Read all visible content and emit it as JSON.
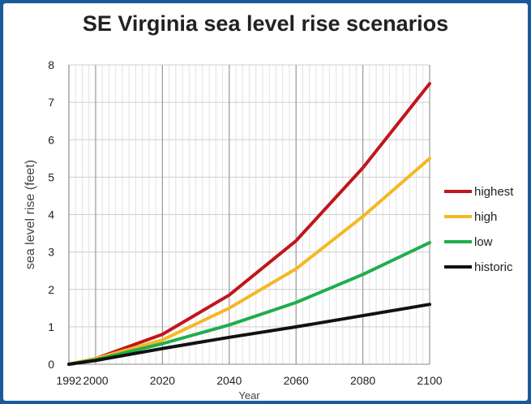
{
  "chart_data": {
    "type": "line",
    "title": "SE Virginia sea level rise scenarios",
    "xlabel": "Year",
    "ylabel": "sea level rise (feet)",
    "x": [
      1992,
      2000,
      2020,
      2040,
      2060,
      2080,
      2100
    ],
    "x_ticks": [
      "1992",
      "2000",
      "2020",
      "2040",
      "2060",
      "2080",
      "2100"
    ],
    "y_ticks": [
      "0",
      "1",
      "2",
      "3",
      "4",
      "5",
      "6",
      "7",
      "8"
    ],
    "xlim": [
      1992,
      2100
    ],
    "ylim": [
      0,
      8
    ],
    "grid": true,
    "legend_position": "right",
    "series": [
      {
        "name": "highest",
        "color": "#c0161c",
        "values": [
          0,
          0.15,
          0.8,
          1.85,
          3.3,
          5.25,
          7.5
        ]
      },
      {
        "name": "high",
        "color": "#f5b823",
        "values": [
          0,
          0.15,
          0.65,
          1.5,
          2.55,
          3.95,
          5.5
        ]
      },
      {
        "name": "low",
        "color": "#1fae4b",
        "values": [
          0,
          0.12,
          0.55,
          1.05,
          1.65,
          2.4,
          3.25
        ]
      },
      {
        "name": "historic",
        "color": "#111111",
        "values": [
          0,
          0.1,
          0.42,
          0.72,
          1.0,
          1.3,
          1.6
        ]
      }
    ]
  }
}
